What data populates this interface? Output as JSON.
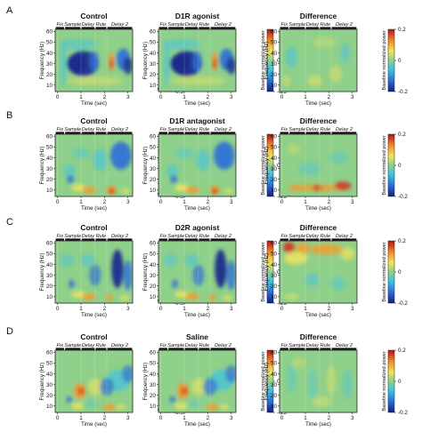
{
  "figure": {
    "x_axis_label": "Time (sec)",
    "y_axis_label": "Frequency (Hz)",
    "colorbar_label": "Baseline normalized power",
    "x_ticks": [
      "0",
      "1",
      "2",
      "3"
    ],
    "y_ticks": [
      "60",
      "50",
      "40",
      "30",
      "20",
      "10"
    ],
    "epochs": [
      {
        "label": "Fix",
        "t_start": -0.1,
        "t_end": 0.3
      },
      {
        "label": "Sample",
        "t_start": 0.3,
        "t_end": 1.0
      },
      {
        "label": "Delay",
        "t_start": 1.0,
        "t_end": 1.6
      },
      {
        "label": "Rule",
        "t_start": 1.6,
        "t_end": 2.1
      },
      {
        "label": "Delay 2",
        "t_start": 2.1,
        "t_end": 3.2
      }
    ],
    "colors": {
      "dark_blue": "#1a2a8c",
      "blue": "#2f6fd6",
      "cyan": "#3fc2e3",
      "green": "#8fd08a",
      "yellow": "#f2e35a",
      "orange": "#f49a2d",
      "red": "#d42a1e"
    },
    "panels": [
      {
        "letter": "A",
        "titles": [
          "Control",
          "D1R agonist",
          "Difference"
        ],
        "colorbars": [
          {
            "ticks": [
              "0",
              "-0.5"
            ]
          },
          {
            "ticks": [
              "0",
              "-0.5"
            ]
          },
          {
            "ticks": [
              "0.2",
              "0",
              "-0.2"
            ]
          }
        ]
      },
      {
        "letter": "B",
        "titles": [
          "Control",
          "D1R antagonist",
          "Difference"
        ],
        "colorbars": [
          {
            "ticks": [
              "0",
              "-0.5"
            ]
          },
          {
            "ticks": [
              "0",
              "-0.5"
            ]
          },
          {
            "ticks": [
              "0.2",
              "0",
              "-0.2"
            ]
          }
        ]
      },
      {
        "letter": "C",
        "titles": [
          "Control",
          "D2R agonist",
          "Difference"
        ],
        "colorbars": [
          {
            "ticks": [
              "0",
              "-0.5"
            ]
          },
          {
            "ticks": [
              "0",
              "-0.5"
            ]
          },
          {
            "ticks": [
              "0.2",
              "0",
              "-0.2"
            ]
          }
        ]
      },
      {
        "letter": "D",
        "titles": [
          "Control",
          "Saline",
          "Difference"
        ],
        "colorbars": [
          {
            "ticks": [
              "0",
              "-0.5"
            ]
          },
          {
            "ticks": [
              "0",
              "-0.5"
            ]
          },
          {
            "ticks": [
              "0.2",
              "0",
              "-0.2"
            ]
          }
        ]
      }
    ]
  }
}
